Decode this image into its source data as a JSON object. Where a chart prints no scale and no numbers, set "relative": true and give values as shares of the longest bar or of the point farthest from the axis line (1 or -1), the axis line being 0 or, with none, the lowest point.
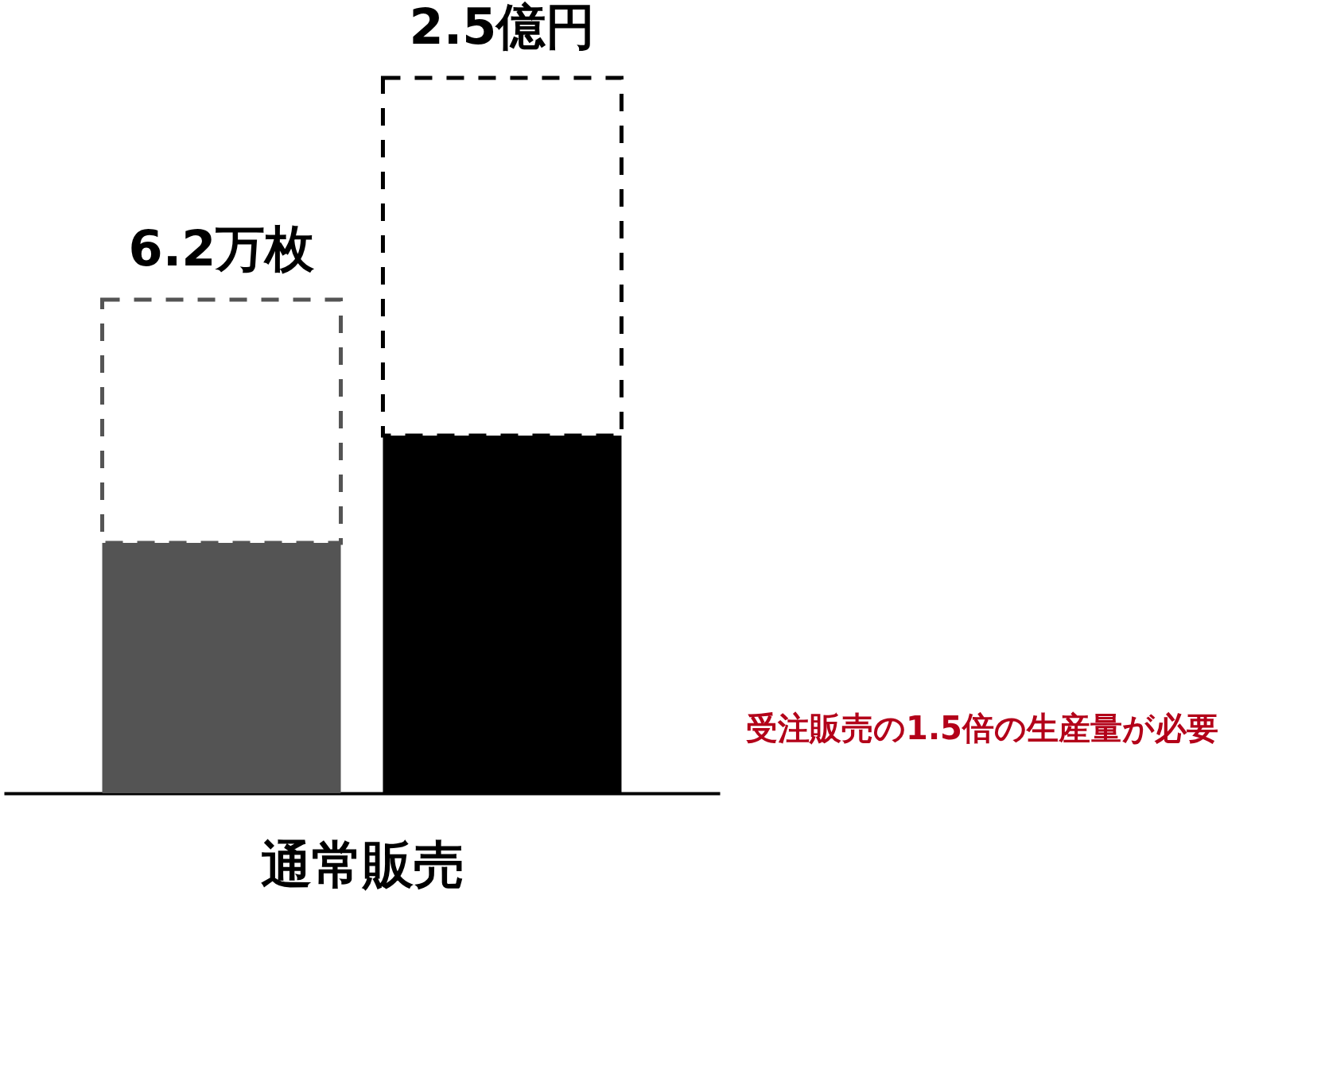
{
  "chart_data": {
    "type": "bar",
    "relative": true,
    "stacked": true,
    "categories": [
      null,
      null
    ],
    "xlabel": "通常販売",
    "series": [
      {
        "colors": [
          "#545454",
          "#000000"
        ],
        "values": [
          0.35,
          0.5
        ],
        "line_style": "solid"
      },
      {
        "colors": [
          "#545454",
          "#000000"
        ],
        "values": [
          0.34,
          0.5
        ],
        "line_style": "dashed"
      }
    ],
    "annotations": [
      {
        "text": "6.2万枚",
        "y": 0.69
      },
      {
        "text": "2.5億円",
        "y": 1
      },
      "受注販売の1.5倍の生産量が必要"
    ],
    "grid": false
  }
}
